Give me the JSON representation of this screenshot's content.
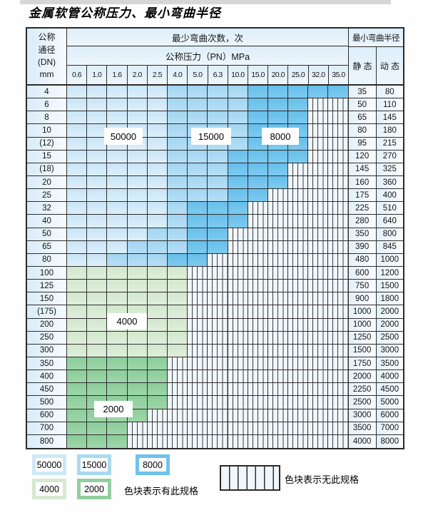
{
  "page": {
    "title": "金属软管公称压力、最小弯曲半径"
  },
  "table": {
    "header": {
      "dn_lines": [
        "公称",
        "通径",
        "(DN)",
        "mm"
      ],
      "bend_cycles": "最少弯曲次数，次",
      "pressure": "公称压力（PN）MPa",
      "min_bend_radius": "最小弯曲半径",
      "static": "静 态",
      "dynamic": "动 态",
      "pressures": [
        "0.6",
        "1.0",
        "1.6",
        "2.0",
        "2.5",
        "4.0",
        "5.0",
        "6.3",
        "10.0",
        "15.0",
        "20.0",
        "25.0",
        "32.0",
        "35.0"
      ]
    },
    "cell_legend_meaning": {
      "b1": "50000",
      "b2": "15000",
      "b3": "8000",
      "g1": "4000",
      "g2": "2000",
      "x": "no-spec"
    },
    "rows": [
      {
        "dn": "4",
        "static": "35",
        "dynamic": "80",
        "cells": [
          "b1",
          "b1",
          "b1",
          "b1",
          "b1",
          "b2",
          "b2",
          "b2",
          "b2",
          "b3",
          "b3",
          "b3",
          "b3",
          "b3"
        ]
      },
      {
        "dn": "6",
        "static": "50",
        "dynamic": "110",
        "cells": [
          "b1",
          "b1",
          "b1",
          "b1",
          "b1",
          "b2",
          "b2",
          "b2",
          "b2",
          "b3",
          "b3",
          "b3",
          "x",
          "x"
        ]
      },
      {
        "dn": "8",
        "static": "65",
        "dynamic": "145",
        "cells": [
          "b1",
          "b1",
          "b1",
          "b1",
          "b1",
          "b2",
          "b2",
          "b2",
          "b2",
          "b3",
          "b3",
          "b3",
          "x",
          "x"
        ]
      },
      {
        "dn": "10",
        "static": "80",
        "dynamic": "180",
        "cells": [
          "b1",
          "b1",
          "b1",
          "b1",
          "b1",
          "b2",
          "b2",
          "b2",
          "b2",
          "b3",
          "b3",
          "b3",
          "x",
          "x"
        ]
      },
      {
        "dn": "(12)",
        "static": "95",
        "dynamic": "215",
        "cells": [
          "b1",
          "b1",
          "b1",
          "b1",
          "b1",
          "b2",
          "b2",
          "b2",
          "b2",
          "b3",
          "b3",
          "b3",
          "x",
          "x"
        ]
      },
      {
        "dn": "15",
        "static": "120",
        "dynamic": "270",
        "cells": [
          "b1",
          "b1",
          "b1",
          "b1",
          "b1",
          "b2",
          "b2",
          "b2",
          "b3",
          "b3",
          "b3",
          "b3",
          "x",
          "x"
        ]
      },
      {
        "dn": "(18)",
        "static": "145",
        "dynamic": "325",
        "cells": [
          "b1",
          "b1",
          "b1",
          "b1",
          "b1",
          "b2",
          "b2",
          "b2",
          "b3",
          "b3",
          "b3",
          "x",
          "x",
          "x"
        ]
      },
      {
        "dn": "20",
        "static": "160",
        "dynamic": "360",
        "cells": [
          "b1",
          "b1",
          "b1",
          "b1",
          "b1",
          "b2",
          "b2",
          "b2",
          "b3",
          "b3",
          "b3",
          "x",
          "x",
          "x"
        ]
      },
      {
        "dn": "25",
        "static": "175",
        "dynamic": "400",
        "cells": [
          "b1",
          "b1",
          "b1",
          "b1",
          "b1",
          "b2",
          "b2",
          "b2",
          "b3",
          "b3",
          "x",
          "x",
          "x",
          "x"
        ]
      },
      {
        "dn": "32",
        "static": "225",
        "dynamic": "510",
        "cells": [
          "b1",
          "b1",
          "b1",
          "b1",
          "b1",
          "b2",
          "b3",
          "b3",
          "b3",
          "x",
          "x",
          "x",
          "x",
          "x"
        ]
      },
      {
        "dn": "40",
        "static": "280",
        "dynamic": "640",
        "cells": [
          "b1",
          "b1",
          "b1",
          "b1",
          "b1",
          "b2",
          "b3",
          "b3",
          "b3",
          "x",
          "x",
          "x",
          "x",
          "x"
        ]
      },
      {
        "dn": "50",
        "static": "350",
        "dynamic": "800",
        "cells": [
          "b1",
          "b1",
          "b1",
          "b1",
          "b2",
          "b2",
          "b3",
          "b3",
          "x",
          "x",
          "x",
          "x",
          "x",
          "x"
        ]
      },
      {
        "dn": "65",
        "static": "390",
        "dynamic": "845",
        "cells": [
          "b1",
          "b1",
          "b1",
          "b2",
          "b2",
          "b2",
          "b3",
          "b3",
          "x",
          "x",
          "x",
          "x",
          "x",
          "x"
        ]
      },
      {
        "dn": "80",
        "static": "480",
        "dynamic": "1000",
        "cells": [
          "b1",
          "b1",
          "b2",
          "b2",
          "b2",
          "b3",
          "b3",
          "x",
          "x",
          "x",
          "x",
          "x",
          "x",
          "x"
        ]
      },
      {
        "dn": "100",
        "static": "600",
        "dynamic": "1200",
        "cells": [
          "g1",
          "g1",
          "g1",
          "g1",
          "g1",
          "g1",
          "x",
          "x",
          "x",
          "x",
          "x",
          "x",
          "x",
          "x"
        ]
      },
      {
        "dn": "125",
        "static": "750",
        "dynamic": "1500",
        "cells": [
          "g1",
          "g1",
          "g1",
          "g1",
          "g1",
          "g1",
          "x",
          "x",
          "x",
          "x",
          "x",
          "x",
          "x",
          "x"
        ]
      },
      {
        "dn": "150",
        "static": "900",
        "dynamic": "1800",
        "cells": [
          "g1",
          "g1",
          "g1",
          "g1",
          "g1",
          "g1",
          "x",
          "x",
          "x",
          "x",
          "x",
          "x",
          "x",
          "x"
        ]
      },
      {
        "dn": "(175)",
        "static": "1000",
        "dynamic": "2000",
        "cells": [
          "g1",
          "g1",
          "g1",
          "g1",
          "g1",
          "g1",
          "x",
          "x",
          "x",
          "x",
          "x",
          "x",
          "x",
          "x"
        ]
      },
      {
        "dn": "200",
        "static": "1000",
        "dynamic": "2000",
        "cells": [
          "g1",
          "g1",
          "g1",
          "g1",
          "g1",
          "g1",
          "x",
          "x",
          "x",
          "x",
          "x",
          "x",
          "x",
          "x"
        ]
      },
      {
        "dn": "250",
        "static": "1250",
        "dynamic": "2500",
        "cells": [
          "g1",
          "g1",
          "g1",
          "g1",
          "g1",
          "g1",
          "x",
          "x",
          "x",
          "x",
          "x",
          "x",
          "x",
          "x"
        ]
      },
      {
        "dn": "300",
        "static": "1500",
        "dynamic": "3000",
        "cells": [
          "g1",
          "g1",
          "g1",
          "g1",
          "g1",
          "g1",
          "x",
          "x",
          "x",
          "x",
          "x",
          "x",
          "x",
          "x"
        ]
      },
      {
        "dn": "350",
        "static": "1750",
        "dynamic": "3500",
        "cells": [
          "g2",
          "g2",
          "g2",
          "g2",
          "g2",
          "x",
          "x",
          "x",
          "x",
          "x",
          "x",
          "x",
          "x",
          "x"
        ]
      },
      {
        "dn": "400",
        "static": "2000",
        "dynamic": "4000",
        "cells": [
          "g2",
          "g2",
          "g2",
          "g2",
          "g2",
          "x",
          "x",
          "x",
          "x",
          "x",
          "x",
          "x",
          "x",
          "x"
        ]
      },
      {
        "dn": "450",
        "static": "2250",
        "dynamic": "4500",
        "cells": [
          "g2",
          "g2",
          "g2",
          "g2",
          "g2",
          "x",
          "x",
          "x",
          "x",
          "x",
          "x",
          "x",
          "x",
          "x"
        ]
      },
      {
        "dn": "500",
        "static": "2500",
        "dynamic": "5000",
        "cells": [
          "g2",
          "g2",
          "g2",
          "g2",
          "g2",
          "x",
          "x",
          "x",
          "x",
          "x",
          "x",
          "x",
          "x",
          "x"
        ]
      },
      {
        "dn": "600",
        "static": "3000",
        "dynamic": "6000",
        "cells": [
          "g2",
          "g2",
          "g2",
          "g2",
          "x",
          "x",
          "x",
          "x",
          "x",
          "x",
          "x",
          "x",
          "x",
          "x"
        ]
      },
      {
        "dn": "700",
        "static": "3500",
        "dynamic": "7000",
        "cells": [
          "g2",
          "g2",
          "g2",
          "x",
          "x",
          "x",
          "x",
          "x",
          "x",
          "x",
          "x",
          "x",
          "x",
          "x"
        ]
      },
      {
        "dn": "800",
        "static": "4000",
        "dynamic": "8000",
        "cells": [
          "g2",
          "g2",
          "g2",
          "x",
          "x",
          "x",
          "x",
          "x",
          "x",
          "x",
          "x",
          "x",
          "x",
          "x"
        ]
      }
    ]
  },
  "overlays": [
    {
      "text": "50000"
    },
    {
      "text": "15000"
    },
    {
      "text": "8000"
    },
    {
      "text": "4000"
    },
    {
      "text": "2000"
    }
  ],
  "legend": {
    "items": [
      {
        "label": "50000",
        "type": "b1"
      },
      {
        "label": "15000",
        "type": "b2"
      },
      {
        "label": "8000",
        "type": "b3"
      },
      {
        "label": "4000",
        "type": "g1"
      },
      {
        "label": "2000",
        "type": "g2"
      }
    ],
    "has_spec": "色块表示有此规格",
    "no_spec": "色块表示无此规格"
  },
  "colors": {
    "blue_50000": "#cde7f8",
    "blue_15000": "#a6d8f2",
    "blue_8000": "#6cc1ec",
    "green_4000": "#d5e9d0",
    "green_2000": "#92cf9f",
    "hatch_bg": "#eff6fc",
    "border": "#2a2a2a",
    "header_bg": "#e3f0fa"
  }
}
